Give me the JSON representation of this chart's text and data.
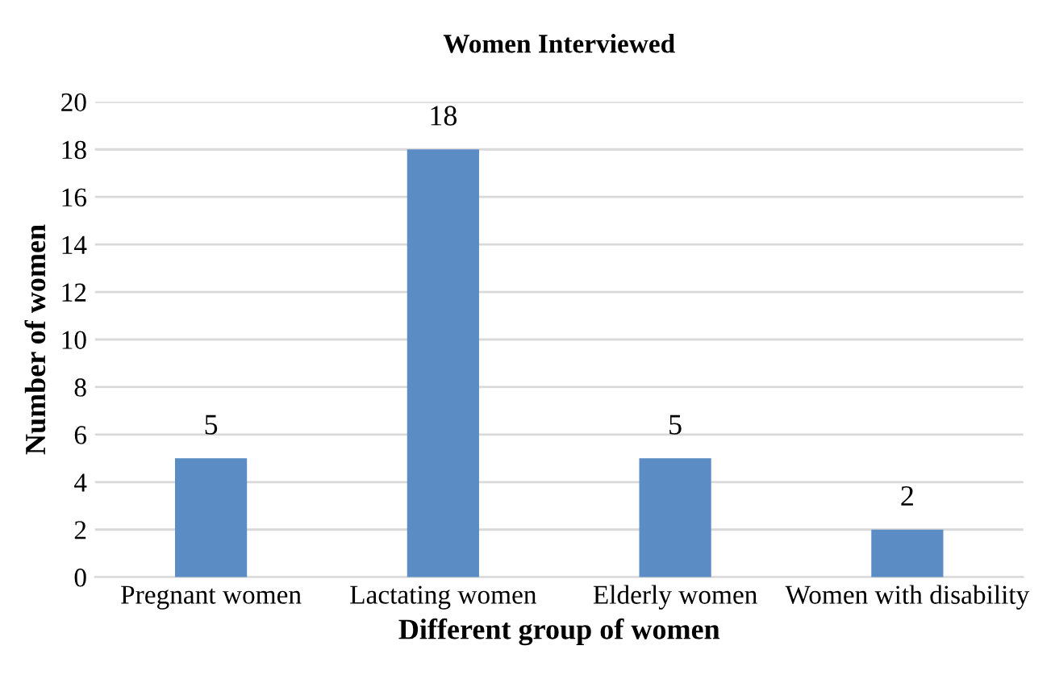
{
  "chart_data": {
    "type": "bar",
    "title": "Women Interviewed",
    "xlabel": "Different group of women",
    "ylabel": "Number of women",
    "categories": [
      "Pregnant women",
      "Lactating women",
      "Elderly women",
      "Women with disability"
    ],
    "values": [
      5,
      18,
      5,
      2
    ],
    "color": "#5b8cc4",
    "ylim": [
      0,
      20
    ],
    "yticks": [
      0,
      2,
      4,
      6,
      8,
      10,
      12,
      14,
      16,
      18,
      20
    ],
    "grid": "y",
    "data_labels": true
  }
}
